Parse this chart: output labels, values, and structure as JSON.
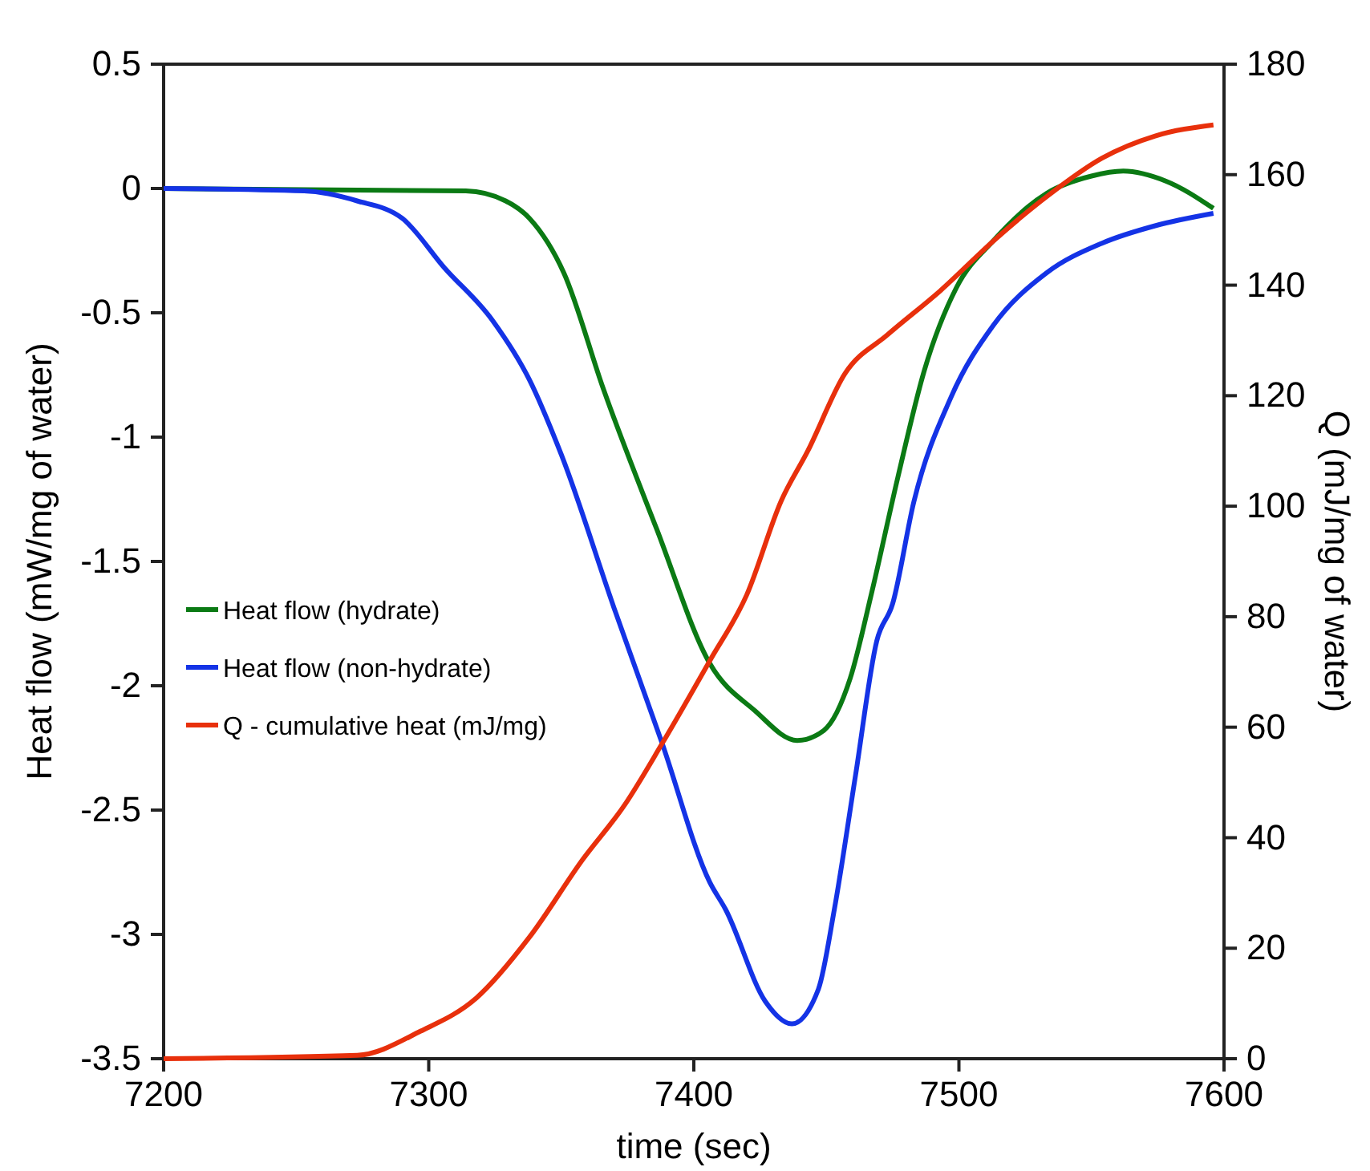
{
  "chart_data": {
    "type": "line",
    "xlabel": "time (sec)",
    "ylabel": "Heat flow (mW/mg of water)",
    "y2label": "Q (mJ/mg of water)",
    "xlim": [
      7200,
      7600
    ],
    "xticks": [
      7200,
      7300,
      7400,
      7500,
      7600
    ],
    "ylim": [
      -3.5,
      0.5
    ],
    "yticks": [
      -3.5,
      -3,
      -2.5,
      -2,
      -1.5,
      -1,
      -0.5,
      0,
      0.5
    ],
    "y2lim": [
      0,
      180
    ],
    "y2ticks": [
      0,
      20,
      40,
      60,
      80,
      100,
      120,
      140,
      160,
      180
    ],
    "legend": "left",
    "grid": false,
    "marker": "none",
    "line_style": "solid",
    "series": [
      {
        "name": "Heat flow (hydrate)",
        "color": "#0b7a14",
        "x": [
          7200,
          7314,
          7329,
          7338,
          7351,
          7366,
          7386,
          7406,
          7423,
          7439,
          7449,
          7459,
          7467,
          7477,
          7487,
          7499,
          7513,
          7533,
          7550,
          7562,
          7578,
          7596
        ],
        "values": [
          0,
          -0.01,
          -0.05,
          -0.12,
          -0.34,
          -0.81,
          -1.37,
          -1.91,
          -2.1,
          -2.22,
          -2.18,
          -1.97,
          -1.63,
          -1.16,
          -0.73,
          -0.4,
          -0.21,
          -0.02,
          0.05,
          0.07,
          0.03,
          -0.08
        ]
      },
      {
        "name": "Heat flow (non-hydrate)",
        "color": "#1433e6",
        "x": [
          7200,
          7253,
          7273,
          7290,
          7306,
          7324,
          7338,
          7350,
          7370,
          7388,
          7406,
          7412,
          7427,
          7437,
          7447,
          7453,
          7461,
          7469,
          7475,
          7483,
          7497,
          7513,
          7533,
          7554,
          7574,
          7596
        ],
        "values": [
          0,
          -0.01,
          -0.05,
          -0.12,
          -0.32,
          -0.53,
          -0.77,
          -1.07,
          -1.69,
          -2.23,
          -2.79,
          -2.9,
          -3.27,
          -3.36,
          -3.22,
          -2.9,
          -2.36,
          -1.82,
          -1.67,
          -1.26,
          -0.84,
          -0.55,
          -0.34,
          -0.22,
          -0.15,
          -0.1
        ]
      },
      {
        "name": "Q - cumulative heat (mJ/mg)",
        "color": "#e8300c",
        "axis": "y2",
        "x": [
          7200,
          7273,
          7297,
          7318,
          7338,
          7358,
          7374,
          7388,
          7406,
          7420,
          7433,
          7443,
          7457,
          7473,
          7493,
          7513,
          7533,
          7554,
          7574,
          7596
        ],
        "values": [
          0,
          0.6,
          5,
          11,
          22,
          36,
          46,
          57,
          72,
          84,
          101,
          110,
          124,
          131,
          139,
          148,
          156,
          163,
          167,
          169
        ]
      }
    ]
  }
}
